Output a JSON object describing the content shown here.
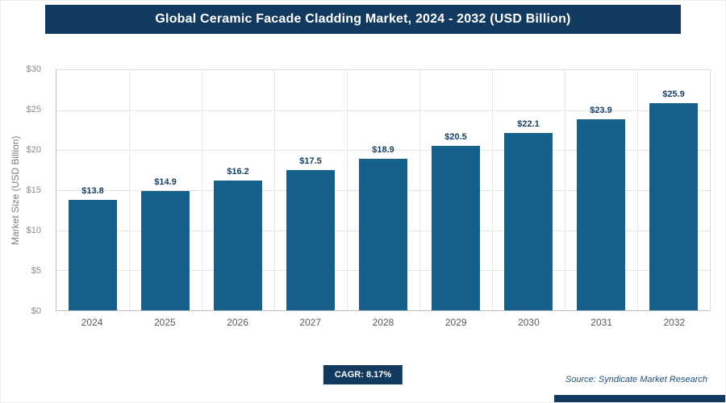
{
  "header": {
    "title": "Global Ceramic Facade Cladding Market, 2024 - 2032 (USD Billion)"
  },
  "chart_data": {
    "type": "bar",
    "title": "Global Ceramic Facade Cladding Market, 2024 - 2032 (USD Billion)",
    "categories": [
      "2024",
      "2025",
      "2026",
      "2027",
      "2028",
      "2029",
      "2030",
      "2031",
      "2032"
    ],
    "values": [
      13.8,
      14.9,
      16.2,
      17.5,
      18.9,
      20.5,
      22.1,
      23.9,
      25.9
    ],
    "value_labels": [
      "$13.8",
      "$14.9",
      "$16.2",
      "$17.5",
      "$18.9",
      "$20.5",
      "$22.1",
      "$23.9",
      "$25.9"
    ],
    "xlabel": "",
    "ylabel": "Market Size (USD Billion)",
    "ylim": [
      0,
      30
    ],
    "ytick_step": 5,
    "ytick_labels": [
      "$0",
      "$5",
      "$10",
      "$15",
      "$20",
      "$25",
      "$30"
    ],
    "grid": true,
    "legend": "none"
  },
  "footer": {
    "cagr_label": "CAGR: 8.17%",
    "source": "Source: Syndicate Market Research"
  },
  "colors": {
    "navy": "#12395e",
    "bar": "#15618c",
    "value_label": "#1a3c5e",
    "axis_text": "#8a8a8a",
    "source_text": "#1f4e79"
  }
}
